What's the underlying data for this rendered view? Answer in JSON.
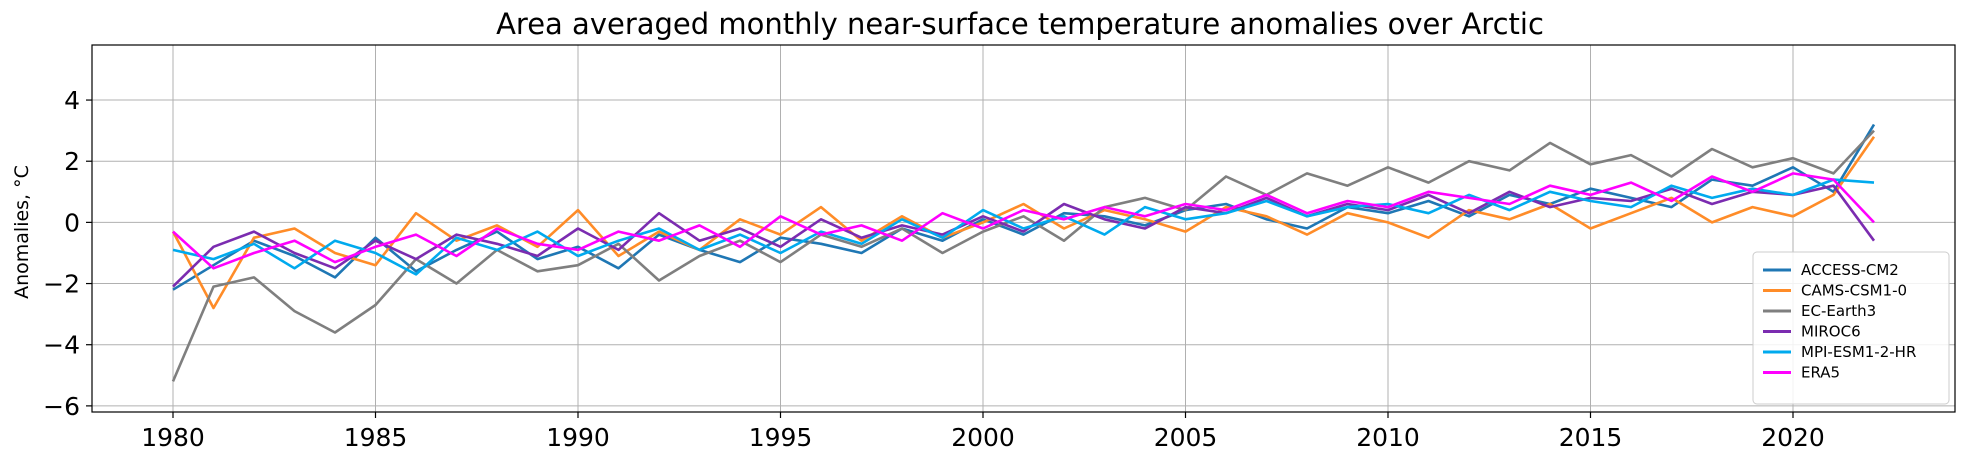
{
  "chart_data": {
    "type": "line",
    "title": "Area averaged monthly near-surface temperature anomalies over Arctic",
    "xlabel": "",
    "ylabel": "Anomalies, °C",
    "xlim": [
      1978,
      2024
    ],
    "ylim": [
      -6.2,
      5.8
    ],
    "x_ticks": [
      1980,
      1985,
      1990,
      1995,
      2000,
      2005,
      2010,
      2015,
      2020
    ],
    "y_ticks": [
      -6,
      -4,
      -2,
      0,
      2,
      4
    ],
    "y_tick_labels": [
      "−6",
      "−4",
      "−2",
      "0",
      "2",
      "4"
    ],
    "grid": true,
    "legend_position": "lower-right",
    "x": [
      1980,
      1981,
      1982,
      1983,
      1984,
      1985,
      1986,
      1987,
      1988,
      1989,
      1990,
      1991,
      1992,
      1993,
      1994,
      1995,
      1996,
      1997,
      1998,
      1999,
      2000,
      2001,
      2002,
      2003,
      2004,
      2005,
      2006,
      2007,
      2008,
      2009,
      2010,
      2011,
      2012,
      2013,
      2014,
      2015,
      2016,
      2017,
      2018,
      2019,
      2020,
      2021,
      2022
    ],
    "series": [
      {
        "name": "ACCESS-CM2",
        "color": "#1f77b4",
        "values": [
          -2.2,
          -1.4,
          -0.6,
          -1.1,
          -1.8,
          -0.5,
          -1.6,
          -0.9,
          -0.3,
          -1.2,
          -0.8,
          -1.5,
          -0.4,
          -0.9,
          -1.3,
          -0.5,
          -0.7,
          -1.0,
          -0.2,
          -0.6,
          0.1,
          -0.4,
          0.3,
          0.2,
          -0.1,
          0.4,
          0.6,
          0.1,
          -0.2,
          0.5,
          0.3,
          0.7,
          0.2,
          0.9,
          0.6,
          1.1,
          0.8,
          0.5,
          1.4,
          1.2,
          1.8,
          1.0,
          3.2
        ]
      },
      {
        "name": "CAMS-CSM1-0",
        "color": "#ff8c28",
        "values": [
          -0.3,
          -2.8,
          -0.5,
          -0.2,
          -1.0,
          -1.4,
          0.3,
          -0.6,
          -0.1,
          -0.8,
          0.4,
          -1.1,
          -0.3,
          -0.9,
          0.1,
          -0.4,
          0.5,
          -0.6,
          0.2,
          -0.5,
          0.0,
          0.6,
          -0.2,
          0.4,
          0.1,
          -0.3,
          0.5,
          0.2,
          -0.4,
          0.3,
          0.0,
          -0.5,
          0.4,
          0.1,
          0.6,
          -0.2,
          0.3,
          0.8,
          0.0,
          0.5,
          0.2,
          0.9,
          2.8
        ]
      },
      {
        "name": "EC-Earth3",
        "color": "#7f7f7f",
        "values": [
          -5.2,
          -2.1,
          -1.8,
          -2.9,
          -3.6,
          -2.7,
          -1.2,
          -2.0,
          -0.9,
          -1.6,
          -1.4,
          -0.7,
          -1.9,
          -1.1,
          -0.6,
          -1.3,
          -0.4,
          -0.8,
          -0.2,
          -1.0,
          -0.3,
          0.2,
          -0.6,
          0.5,
          0.8,
          0.4,
          1.5,
          0.9,
          1.6,
          1.2,
          1.8,
          1.3,
          2.0,
          1.7,
          2.6,
          1.9,
          2.2,
          1.5,
          2.4,
          1.8,
          2.1,
          1.6,
          3.0
        ]
      },
      {
        "name": "MIROC6",
        "color": "#7b2cb0",
        "values": [
          -2.1,
          -0.8,
          -0.3,
          -1.0,
          -1.5,
          -0.6,
          -1.2,
          -0.4,
          -0.7,
          -1.1,
          -0.2,
          -0.9,
          0.3,
          -0.6,
          -0.2,
          -0.8,
          0.1,
          -0.5,
          -0.1,
          -0.4,
          0.2,
          -0.3,
          0.6,
          0.1,
          -0.2,
          0.5,
          0.3,
          0.8,
          0.2,
          0.6,
          0.4,
          0.9,
          0.3,
          1.0,
          0.5,
          0.8,
          0.7,
          1.1,
          0.6,
          1.0,
          0.9,
          1.2,
          -0.6
        ]
      },
      {
        "name": "MPI-ESM1-2-HR",
        "color": "#00aaee",
        "values": [
          -0.9,
          -1.2,
          -0.7,
          -1.5,
          -0.6,
          -1.0,
          -1.7,
          -0.5,
          -0.9,
          -0.3,
          -1.1,
          -0.6,
          -0.2,
          -0.9,
          -0.4,
          -1.0,
          -0.3,
          -0.7,
          0.1,
          -0.5,
          0.4,
          -0.2,
          0.2,
          -0.4,
          0.5,
          0.1,
          0.3,
          0.7,
          0.2,
          0.5,
          0.6,
          0.3,
          0.9,
          0.4,
          1.0,
          0.7,
          0.5,
          1.2,
          0.8,
          1.1,
          0.9,
          1.4,
          1.3
        ]
      },
      {
        "name": "ERA5",
        "color": "#ff00ff",
        "values": [
          -0.3,
          -1.5,
          -1.0,
          -0.6,
          -1.3,
          -0.8,
          -0.4,
          -1.1,
          -0.2,
          -0.7,
          -0.9,
          -0.3,
          -0.6,
          -0.1,
          -0.8,
          0.2,
          -0.4,
          -0.1,
          -0.6,
          0.3,
          -0.2,
          0.4,
          0.1,
          0.5,
          0.2,
          0.6,
          0.4,
          0.9,
          0.3,
          0.7,
          0.5,
          1.0,
          0.8,
          0.6,
          1.2,
          0.9,
          1.3,
          0.7,
          1.5,
          1.0,
          1.6,
          1.4,
          0.0
        ]
      }
    ]
  }
}
